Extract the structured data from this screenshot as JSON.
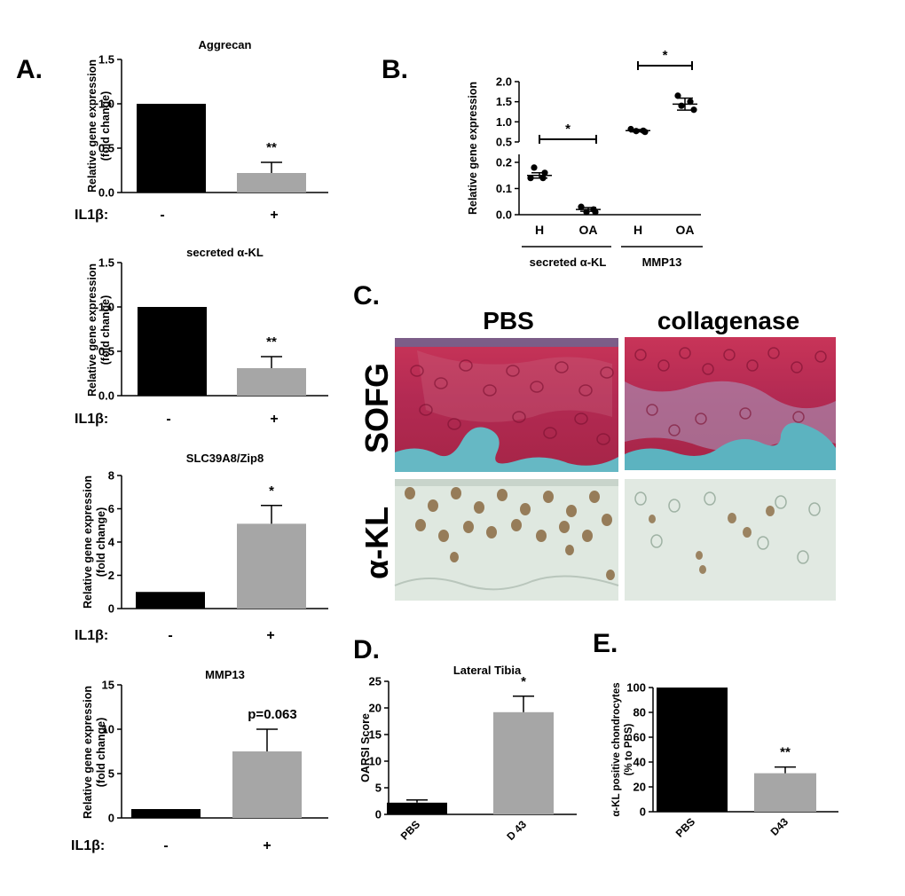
{
  "panel_labels": {
    "A": "A.",
    "B": "B.",
    "C": "C.",
    "D": "D.",
    "E": "E."
  },
  "common": {
    "ylabel_line1": "Relative gene expression",
    "ylabel_line2": "(fold change)",
    "treatment_label": "IL1β:",
    "cat_minus": "-",
    "cat_plus": "+"
  },
  "colors": {
    "control": "#000000",
    "treated": "#a6a6a6",
    "pbs_stain_red": "#b0284a",
    "bone_blue": "#5fb5c2",
    "ihc_bg": "#dfe8e0",
    "ihc_brown": "#8a6a42"
  },
  "chart_data": [
    {
      "id": "A1",
      "type": "bar",
      "title": "Aggrecan",
      "categories": [
        "-",
        "+"
      ],
      "values": [
        1.0,
        0.22
      ],
      "errors": [
        0,
        0.12
      ],
      "ylim": [
        0,
        1.5
      ],
      "yticks": [
        "0.0",
        "0.5",
        "1.0",
        "1.5"
      ],
      "significance": "**"
    },
    {
      "id": "A2",
      "type": "bar",
      "title": "secreted α-KL",
      "categories": [
        "-",
        "+"
      ],
      "values": [
        1.0,
        0.31
      ],
      "errors": [
        0,
        0.13
      ],
      "ylim": [
        0,
        1.5
      ],
      "yticks": [
        "0.0",
        "0.5",
        "1.0",
        "1.5"
      ],
      "significance": "**"
    },
    {
      "id": "A3",
      "type": "bar",
      "title": "SLC39A8/Zip8",
      "categories": [
        "-",
        "+"
      ],
      "values": [
        1.0,
        5.1
      ],
      "errors": [
        0,
        1.1
      ],
      "ylim": [
        0,
        8
      ],
      "yticks": [
        "0",
        "2",
        "4",
        "6",
        "8"
      ],
      "significance": "*"
    },
    {
      "id": "A4",
      "type": "bar",
      "title": "MMP13",
      "categories": [
        "-",
        "+"
      ],
      "values": [
        1.0,
        7.5
      ],
      "errors": [
        0,
        2.5
      ],
      "ylim": [
        0,
        15
      ],
      "yticks": [
        "0",
        "5",
        "10",
        "15"
      ],
      "significance": "p=0.063"
    },
    {
      "id": "B",
      "type": "scatter",
      "ylabel": "Relative gene expression",
      "categories": [
        "H",
        "OA",
        "H",
        "OA"
      ],
      "groups": [
        "secreted α-KL",
        "MMP13"
      ],
      "points": [
        [
          0.18,
          0.16,
          0.14,
          0.14
        ],
        [
          0.03,
          0.02,
          0.01,
          0.01
        ],
        [
          0.82,
          0.78,
          0.77,
          0.75
        ],
        [
          1.65,
          1.5,
          1.4,
          1.3
        ]
      ],
      "means": [
        0.15,
        0.02,
        0.78,
        1.44
      ],
      "sems": [
        0.01,
        0.007,
        0.03,
        0.15
      ],
      "ylim_lower": [
        0,
        0.2
      ],
      "ylim_upper": [
        0.5,
        2.0
      ],
      "yticks_lower": [
        "0.0",
        "0.1",
        "0.2"
      ],
      "yticks_upper": [
        "0.5",
        "1.0",
        "1.5",
        "2.0"
      ],
      "comparisons": [
        "*",
        "*"
      ]
    },
    {
      "id": "D",
      "type": "bar",
      "title": "Lateral Tibia",
      "ylabel": "OARSI Score",
      "categories": [
        "PBS",
        "D 43"
      ],
      "values": [
        2.2,
        19.2
      ],
      "errors": [
        0.5,
        3.0
      ],
      "ylim": [
        0,
        25
      ],
      "yticks": [
        "0",
        "5",
        "10",
        "15",
        "20",
        "25"
      ],
      "significance": "*"
    },
    {
      "id": "E",
      "type": "bar",
      "ylabel_line1": "α-KL positive chondrocytes",
      "ylabel_line2": "(% to PBS)",
      "categories": [
        "PBS",
        "D43"
      ],
      "values": [
        100,
        31
      ],
      "errors": [
        0,
        5
      ],
      "ylim": [
        0,
        100
      ],
      "yticks": [
        "0",
        "20",
        "40",
        "60",
        "80",
        "100"
      ],
      "significance": "**"
    }
  ],
  "panel_c": {
    "col1": "PBS",
    "col2": "collagenase",
    "row1": "SOFG",
    "row2": "α-KL"
  }
}
